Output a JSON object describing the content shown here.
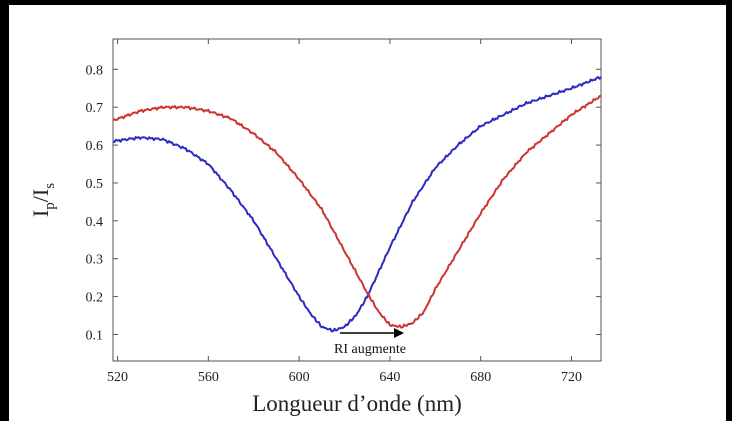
{
  "chart_data": {
    "type": "line",
    "xlabel": "Longueur d’onde (nm)",
    "ylabel_main": "I",
    "ylabel_sub1": "p",
    "ylabel_sep": "/I",
    "ylabel_sub2": "s",
    "xlim": [
      518,
      733
    ],
    "ylim": [
      0.03,
      0.88
    ],
    "x_ticks": [
      "520",
      "560",
      "600",
      "640",
      "680",
      "720"
    ],
    "y_ticks": [
      "0.1",
      "0.2",
      "0.3",
      "0.4",
      "0.5",
      "0.6",
      "0.7",
      "0.8"
    ],
    "grid": false,
    "legend": "none",
    "annotation": "RI augmente",
    "series": [
      {
        "color": "#2b2bbf",
        "x": [
          518,
          530,
          540,
          550,
          560,
          570,
          580,
          590,
          600,
          605,
          610,
          615,
          620,
          625,
          630,
          640,
          650,
          660,
          670,
          680,
          690,
          700,
          710,
          720,
          733
        ],
        "y": [
          0.61,
          0.62,
          0.615,
          0.59,
          0.55,
          0.48,
          0.4,
          0.3,
          0.2,
          0.155,
          0.12,
          0.11,
          0.12,
          0.15,
          0.2,
          0.33,
          0.45,
          0.54,
          0.6,
          0.65,
          0.68,
          0.71,
          0.73,
          0.75,
          0.78
        ]
      },
      {
        "color": "#cc3333",
        "x": [
          518,
          530,
          540,
          550,
          560,
          570,
          580,
          590,
          600,
          610,
          620,
          630,
          635,
          640,
          645,
          650,
          655,
          660,
          670,
          680,
          690,
          700,
          710,
          720,
          733
        ],
        "y": [
          0.665,
          0.69,
          0.7,
          0.7,
          0.69,
          0.67,
          0.63,
          0.58,
          0.51,
          0.43,
          0.32,
          0.21,
          0.16,
          0.125,
          0.12,
          0.13,
          0.16,
          0.22,
          0.32,
          0.42,
          0.51,
          0.58,
          0.63,
          0.68,
          0.73
        ]
      }
    ]
  }
}
